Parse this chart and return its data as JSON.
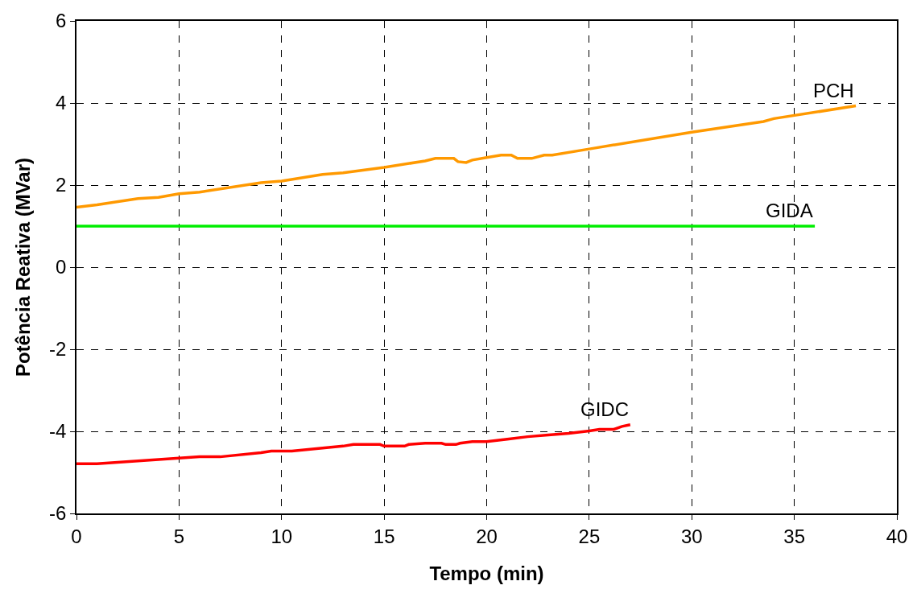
{
  "chart_data": {
    "type": "line",
    "xlabel": "Tempo (min)",
    "ylabel": "Potência Reativa (MVar)",
    "xlim": [
      0,
      40
    ],
    "xticks": [
      0,
      5,
      10,
      15,
      20,
      25,
      30,
      35,
      40
    ],
    "ylim": [
      -6,
      6
    ],
    "yticks": [
      -6,
      -4,
      -2,
      0,
      2,
      4,
      6
    ],
    "grid": true,
    "legend": false,
    "marker": "none",
    "line_style": "solid",
    "series": [
      {
        "name": "PCH",
        "color": "#ff9900",
        "x": [
          0,
          1,
          3,
          4,
          5,
          6,
          9,
          10,
          12,
          13,
          15,
          17,
          17.5,
          18.4,
          18.6,
          19,
          19.3,
          20,
          20.7,
          21.2,
          21.5,
          22.2,
          22.8,
          23.2,
          25,
          30,
          33.5,
          34,
          38
        ],
        "values": [
          1.46,
          1.52,
          1.67,
          1.7,
          1.79,
          1.83,
          2.06,
          2.1,
          2.26,
          2.3,
          2.43,
          2.59,
          2.65,
          2.65,
          2.57,
          2.55,
          2.61,
          2.67,
          2.73,
          2.73,
          2.65,
          2.65,
          2.73,
          2.73,
          2.88,
          3.29,
          3.55,
          3.62,
          3.93
        ]
      },
      {
        "name": "GIDA",
        "color": "#00ee00",
        "x": [
          0,
          36
        ],
        "values": [
          1,
          1
        ]
      },
      {
        "name": "GIDC",
        "color": "#ff0000",
        "x": [
          0,
          1,
          6,
          7,
          9,
          9.5,
          10.5,
          13,
          13.5,
          14.8,
          15,
          16,
          16.2,
          17,
          17.8,
          18,
          18.5,
          18.7,
          19.3,
          20,
          21,
          22,
          23,
          24,
          25,
          25.5,
          26.2,
          26.6,
          27
        ],
        "values": [
          -4.79,
          -4.79,
          -4.62,
          -4.62,
          -4.52,
          -4.48,
          -4.48,
          -4.36,
          -4.32,
          -4.32,
          -4.36,
          -4.36,
          -4.32,
          -4.29,
          -4.29,
          -4.32,
          -4.32,
          -4.29,
          -4.25,
          -4.25,
          -4.19,
          -4.13,
          -4.09,
          -4.05,
          -3.99,
          -3.95,
          -3.95,
          -3.88,
          -3.84
        ]
      }
    ]
  }
}
